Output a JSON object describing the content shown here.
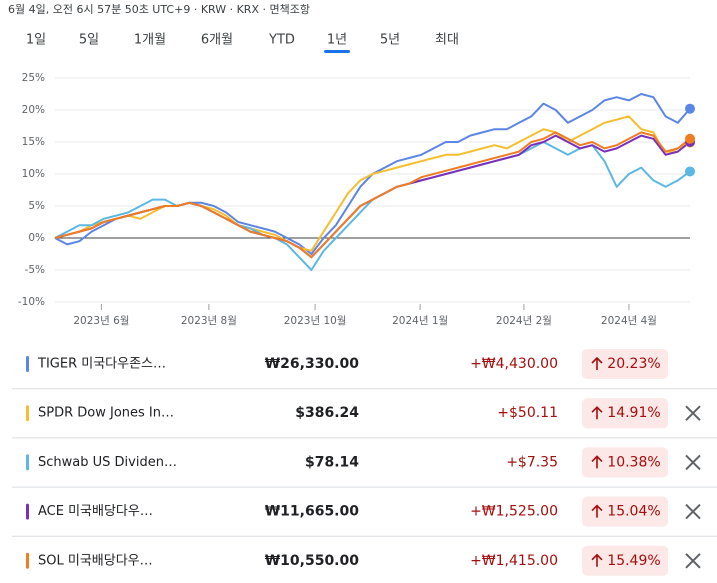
{
  "header": {
    "timestamp": "6월 4일, 오전 6시 57분 50초 UTC+9 · KRW · KRX · 면책조항"
  },
  "tabs": [
    "1일",
    "5일",
    "1개월",
    "6개월",
    "YTD",
    "1년",
    "5년",
    "최대"
  ],
  "chart_data": {
    "type": "line",
    "x": [
      0,
      1,
      2,
      3,
      4,
      5,
      6,
      7,
      8,
      9,
      10,
      11,
      12,
      13,
      14,
      15,
      16,
      17,
      18,
      19,
      20,
      21,
      22,
      23,
      24,
      25,
      26,
      27,
      28,
      29,
      30,
      31,
      32,
      33,
      34,
      35,
      36,
      37,
      38,
      39,
      40,
      41,
      42,
      43,
      44,
      45,
      46,
      47,
      48,
      49,
      50,
      51,
      52
    ],
    "xlim": [
      0,
      52
    ],
    "xticks": [
      {
        "value": 3.8,
        "label": "2023년 6월"
      },
      {
        "value": 12.6,
        "label": "2023년 8월"
      },
      {
        "value": 21.3,
        "label": "2023년 10월"
      },
      {
        "value": 29.9,
        "label": "2024년 1월"
      },
      {
        "value": 38.4,
        "label": "2024년 2월"
      },
      {
        "value": 47.0,
        "label": "2024년 4월"
      }
    ],
    "ylim": [
      -10,
      25
    ],
    "yticks": [
      {
        "value": 25,
        "label": "25%"
      },
      {
        "value": 20,
        "label": "20%"
      },
      {
        "value": 15,
        "label": "15%"
      },
      {
        "value": 10,
        "label": "10%"
      },
      {
        "value": 5,
        "label": "5%"
      },
      {
        "value": 0,
        "label": "0%"
      },
      {
        "value": -5,
        "label": "-5%"
      },
      {
        "value": -10,
        "label": "-10%"
      }
    ],
    "grid": true,
    "series": [
      {
        "color": "#5b86e5",
        "values": [
          0,
          -1,
          -0.5,
          1,
          2,
          3,
          3.5,
          4,
          4.5,
          5,
          5,
          5.5,
          5.5,
          5,
          4,
          2.5,
          2,
          1.5,
          1,
          0,
          -1,
          -2.5,
          0,
          2,
          5,
          8,
          10,
          11,
          12,
          12.5,
          13,
          14,
          15,
          15,
          16,
          16.5,
          17,
          17,
          18,
          19,
          21,
          20,
          18,
          19,
          20,
          21.5,
          22,
          21.5,
          22.5,
          22,
          19,
          18,
          20.2
        ]
      },
      {
        "color": "#f5be2e",
        "values": [
          0,
          0.5,
          1,
          2,
          2.5,
          3,
          3.5,
          3,
          4,
          5,
          5,
          5.5,
          5,
          4.5,
          3.5,
          2,
          1.5,
          1,
          0.5,
          -0.5,
          -1.5,
          -2,
          1,
          4,
          7,
          9,
          10,
          10.5,
          11,
          11.5,
          12,
          12.5,
          13,
          13,
          13.5,
          14,
          14.5,
          14,
          15,
          16,
          17,
          16.5,
          15,
          16,
          17,
          18,
          18.5,
          19,
          17,
          16.5,
          13,
          14,
          14.9
        ]
      },
      {
        "color": "#5cb8e2",
        "values": [
          0,
          1,
          2,
          2,
          3,
          3.5,
          4,
          5,
          6,
          6,
          5,
          5.5,
          5,
          4,
          3,
          2,
          1.5,
          0.5,
          0,
          -1,
          -3,
          -5,
          -2,
          0,
          2,
          4,
          6,
          7,
          8,
          8.5,
          9,
          9.5,
          10,
          10.5,
          11,
          11.5,
          12,
          12.5,
          13,
          14,
          15,
          14,
          13,
          14,
          14.5,
          12,
          8,
          10,
          11,
          9,
          8,
          9,
          10.4
        ]
      },
      {
        "color": "#7b2fbe",
        "values": [
          0,
          0.5,
          1,
          1.5,
          2.5,
          3,
          3.5,
          4,
          4.5,
          5,
          5,
          5.5,
          5,
          4,
          3,
          2,
          1,
          0.5,
          0,
          -0.5,
          -1.5,
          -3,
          -1,
          1,
          3,
          5,
          6,
          7,
          8,
          8.5,
          9,
          9.5,
          10,
          10.5,
          11,
          11.5,
          12,
          12.5,
          13,
          14.5,
          15,
          16,
          15,
          14,
          14.5,
          13.5,
          14,
          15,
          16,
          15.5,
          13,
          13.5,
          15
        ]
      },
      {
        "color": "#ef7d22",
        "values": [
          0,
          0.5,
          1,
          1.5,
          2.5,
          3,
          3.5,
          4,
          4.5,
          5,
          5,
          5.5,
          5,
          4,
          3,
          2,
          1,
          0.5,
          0,
          -0.5,
          -1.5,
          -3,
          -1,
          1,
          3,
          5,
          6,
          7,
          8,
          8.5,
          9.5,
          10,
          10.5,
          11,
          11.5,
          12,
          12.5,
          13,
          13.5,
          15,
          15.5,
          16.5,
          15.5,
          14.5,
          15,
          14,
          14.5,
          15.5,
          16.5,
          16,
          13.5,
          14,
          15.5
        ]
      }
    ]
  },
  "table": {
    "rows": [
      [
        "TIGER 미국다우존스…",
        "₩26,330.00",
        "+₩4,430.00",
        "20.23%"
      ],
      [
        "SPDR Dow Jones In…",
        "$386.24",
        "+$50.11",
        "14.91%"
      ],
      [
        "Schwab US Dividen…",
        "$78.14",
        "+$7.35",
        "10.38%"
      ],
      [
        "ACE 미국배당다우…",
        "₩11,665.00",
        "+₩1,525.00",
        "15.04%"
      ],
      [
        "SOL 미국배당다우…",
        "₩10,550.00",
        "+₩1,415.00",
        "15.49%"
      ]
    ]
  }
}
